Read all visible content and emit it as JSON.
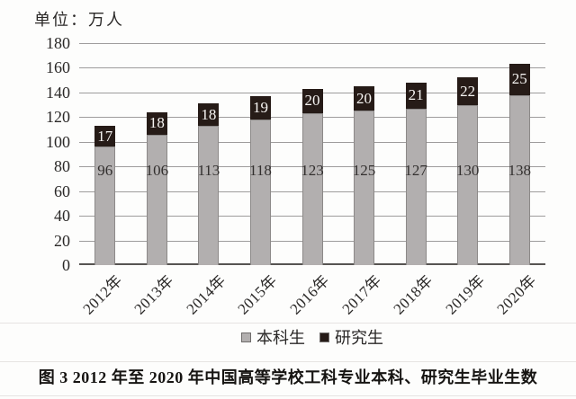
{
  "unit_label": "单位：万人",
  "caption": "图 3  2012 年至 2020 年中国高等学校工科专业本科、研究生毕业生数",
  "chart_data": {
    "type": "bar",
    "stacked": true,
    "title": "图 3  2012 年至 2020 年中国高等学校工科专业本科、研究生毕业生数",
    "unit": "万人",
    "categories": [
      "2012年",
      "2013年",
      "2014年",
      "2015年",
      "2016年",
      "2017年",
      "2018年",
      "2019年",
      "2020年"
    ],
    "series": [
      {
        "name": "本科生",
        "color": "#b2afaf",
        "values": [
          96,
          106,
          113,
          118,
          123,
          125,
          127,
          130,
          138
        ]
      },
      {
        "name": "研究生",
        "color": "#261b17",
        "values": [
          17,
          18,
          18,
          19,
          20,
          20,
          21,
          22,
          25
        ]
      }
    ],
    "ylabel": "",
    "xlabel": "",
    "ylim": [
      0,
      180
    ],
    "ytick_step": 20,
    "grid": true,
    "legend_position": "bottom"
  }
}
